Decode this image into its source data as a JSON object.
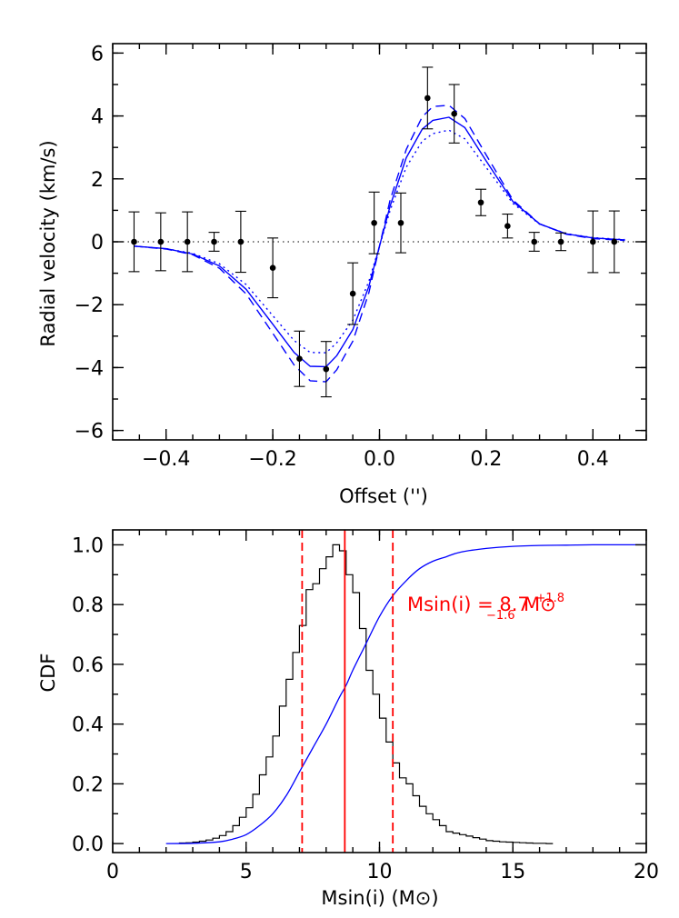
{
  "chart_data": [
    {
      "type": "scatter",
      "xlabel": "Offset ('')",
      "ylabel": "Radial velocity (km/s)",
      "xlim": [
        -0.5,
        0.5
      ],
      "ylim": [
        -6.3,
        6.3
      ],
      "xticks": [
        -0.4,
        -0.2,
        0.0,
        0.2,
        0.4
      ],
      "xtick_labels": [
        "−0.4",
        "−0.2",
        "0.0",
        "0.2",
        "0.4"
      ],
      "yticks": [
        -6,
        -4,
        -2,
        0,
        2,
        4,
        6
      ],
      "ytick_labels": [
        "−6",
        "−4",
        "−2",
        "0",
        "2",
        "4",
        "6"
      ],
      "zero_line": true,
      "series": [
        {
          "style": "points-with-errorbars",
          "color": "#000000",
          "x": [
            -0.46,
            -0.41,
            -0.36,
            -0.31,
            -0.26,
            -0.2,
            -0.15,
            -0.1,
            -0.05,
            -0.01,
            0.04,
            0.09,
            0.14,
            0.19,
            0.24,
            0.29,
            0.34,
            0.4,
            0.44
          ],
          "y": [
            0.0,
            0.0,
            0.0,
            0.0,
            0.0,
            -0.83,
            -3.72,
            -4.05,
            -1.65,
            0.6,
            0.6,
            4.57,
            4.07,
            1.25,
            0.5,
            0.0,
            0.0,
            0.0,
            0.0
          ],
          "err": [
            0.95,
            0.92,
            0.95,
            0.3,
            0.97,
            0.95,
            0.88,
            0.88,
            0.98,
            0.98,
            0.95,
            0.98,
            0.93,
            0.42,
            0.38,
            0.3,
            0.28,
            0.98,
            0.98
          ]
        },
        {
          "style": "solid",
          "color": "#0000ff",
          "x": [
            -0.46,
            -0.4,
            -0.35,
            -0.3,
            -0.25,
            -0.2,
            -0.16,
            -0.13,
            -0.1,
            -0.08,
            -0.05,
            -0.02,
            0.0,
            0.02,
            0.05,
            0.08,
            0.1,
            0.13,
            0.16,
            0.2,
            0.25,
            0.3,
            0.35,
            0.4,
            0.46
          ],
          "y": [
            -0.14,
            -0.22,
            -0.39,
            -0.77,
            -1.51,
            -2.62,
            -3.52,
            -3.96,
            -3.97,
            -3.62,
            -2.79,
            -1.42,
            -0.14,
            1.14,
            2.67,
            3.58,
            3.86,
            3.96,
            3.63,
            2.57,
            1.28,
            0.57,
            0.25,
            0.12,
            0.06
          ]
        },
        {
          "style": "dashed",
          "color": "#0000ff",
          "x": [
            -0.46,
            -0.4,
            -0.35,
            -0.3,
            -0.25,
            -0.2,
            -0.16,
            -0.13,
            -0.1,
            -0.08,
            -0.05,
            -0.02,
            0.0,
            0.02,
            0.05,
            0.08,
            0.1,
            0.13,
            0.16,
            0.2,
            0.25,
            0.3,
            0.35,
            0.4,
            0.46
          ],
          "y": [
            -0.14,
            -0.23,
            -0.41,
            -0.84,
            -1.66,
            -2.91,
            -3.92,
            -4.42,
            -4.45,
            -4.07,
            -3.16,
            -1.62,
            -0.14,
            1.33,
            2.93,
            3.97,
            4.3,
            4.34,
            3.92,
            2.76,
            1.33,
            0.57,
            0.24,
            0.1,
            0.04
          ]
        },
        {
          "style": "dotted",
          "color": "#0000ff",
          "x": [
            -0.46,
            -0.4,
            -0.35,
            -0.3,
            -0.25,
            -0.2,
            -0.16,
            -0.13,
            -0.1,
            -0.08,
            -0.05,
            -0.02,
            0.0,
            0.02,
            0.05,
            0.08,
            0.1,
            0.13,
            0.16,
            0.2,
            0.25,
            0.3,
            0.35,
            0.4,
            0.46
          ],
          "y": [
            -0.14,
            -0.22,
            -0.37,
            -0.7,
            -1.36,
            -2.35,
            -3.14,
            -3.52,
            -3.53,
            -3.21,
            -2.49,
            -1.26,
            -0.14,
            1.0,
            2.37,
            3.2,
            3.44,
            3.55,
            3.27,
            2.36,
            1.22,
            0.56,
            0.26,
            0.13,
            0.07
          ]
        }
      ]
    },
    {
      "type": "line",
      "xlabel": "Msin(i) (M⊙)",
      "ylabel": "CDF",
      "xlim": [
        0,
        20
      ],
      "ylim": [
        -0.03,
        1.05
      ],
      "xticks": [
        0,
        5,
        10,
        15,
        20
      ],
      "xtick_labels": [
        "0",
        "5",
        "10",
        "15",
        "20"
      ],
      "yticks": [
        0.0,
        0.2,
        0.4,
        0.6,
        0.8,
        1.0
      ],
      "ytick_labels": [
        "0.0",
        "0.2",
        "0.4",
        "0.6",
        "0.8",
        "1.0"
      ],
      "histogram": {
        "color": "#000000",
        "bin_edges": [
          2.5,
          2.75,
          3.0,
          3.25,
          3.5,
          3.75,
          4.0,
          4.25,
          4.5,
          4.75,
          5.0,
          5.25,
          5.5,
          5.75,
          6.0,
          6.25,
          6.5,
          6.75,
          7.0,
          7.25,
          7.5,
          7.75,
          8.0,
          8.25,
          8.5,
          8.75,
          9.0,
          9.25,
          9.5,
          9.75,
          10.0,
          10.25,
          10.5,
          10.75,
          11.0,
          11.25,
          11.5,
          11.75,
          12.0,
          12.25,
          12.5,
          12.75,
          13.0,
          13.25,
          13.5,
          13.75,
          14.0,
          14.25,
          14.5,
          14.75,
          15.0,
          15.25,
          15.5,
          15.75,
          16.0,
          16.25,
          16.5
        ],
        "heights": [
          0.002,
          0.003,
          0.005,
          0.008,
          0.012,
          0.018,
          0.027,
          0.04,
          0.06,
          0.088,
          0.12,
          0.165,
          0.23,
          0.29,
          0.36,
          0.46,
          0.55,
          0.64,
          0.73,
          0.85,
          0.87,
          0.92,
          0.96,
          1.0,
          0.98,
          0.9,
          0.84,
          0.72,
          0.58,
          0.5,
          0.42,
          0.34,
          0.27,
          0.22,
          0.2,
          0.16,
          0.125,
          0.1,
          0.08,
          0.06,
          0.04,
          0.035,
          0.03,
          0.025,
          0.02,
          0.015,
          0.01,
          0.008,
          0.006,
          0.005,
          0.004,
          0.003,
          0.002,
          0.001,
          0.001,
          0.0
        ]
      },
      "cdf": {
        "color": "#0000ff",
        "x": [
          2.0,
          3.0,
          4.0,
          4.5,
          5.0,
          5.5,
          6.0,
          6.5,
          7.0,
          7.5,
          8.0,
          8.5,
          8.75,
          9.0,
          9.5,
          10.0,
          10.5,
          11.0,
          11.5,
          12.0,
          12.5,
          13.0,
          14.0,
          15.0,
          16.0,
          17.0,
          18.0,
          20.0
        ],
        "y": [
          0.0,
          0.001,
          0.006,
          0.015,
          0.03,
          0.06,
          0.1,
          0.16,
          0.24,
          0.32,
          0.4,
          0.49,
          0.53,
          0.58,
          0.67,
          0.76,
          0.83,
          0.88,
          0.92,
          0.945,
          0.96,
          0.975,
          0.988,
          0.995,
          0.998,
          0.999,
          1.0,
          1.0
        ]
      },
      "vlines": [
        {
          "x": 8.7,
          "style": "solid",
          "color": "#ff0000"
        },
        {
          "x": 7.1,
          "style": "dashed",
          "color": "#ff0000"
        },
        {
          "x": 10.5,
          "style": "dashed",
          "color": "#ff0000"
        }
      ],
      "annotation": {
        "prefix": "Msin(i) = 8.7",
        "sup": "+1.8",
        "sub": "−1.6",
        "suffix": "M⊙",
        "color": "#ff0000"
      }
    }
  ]
}
